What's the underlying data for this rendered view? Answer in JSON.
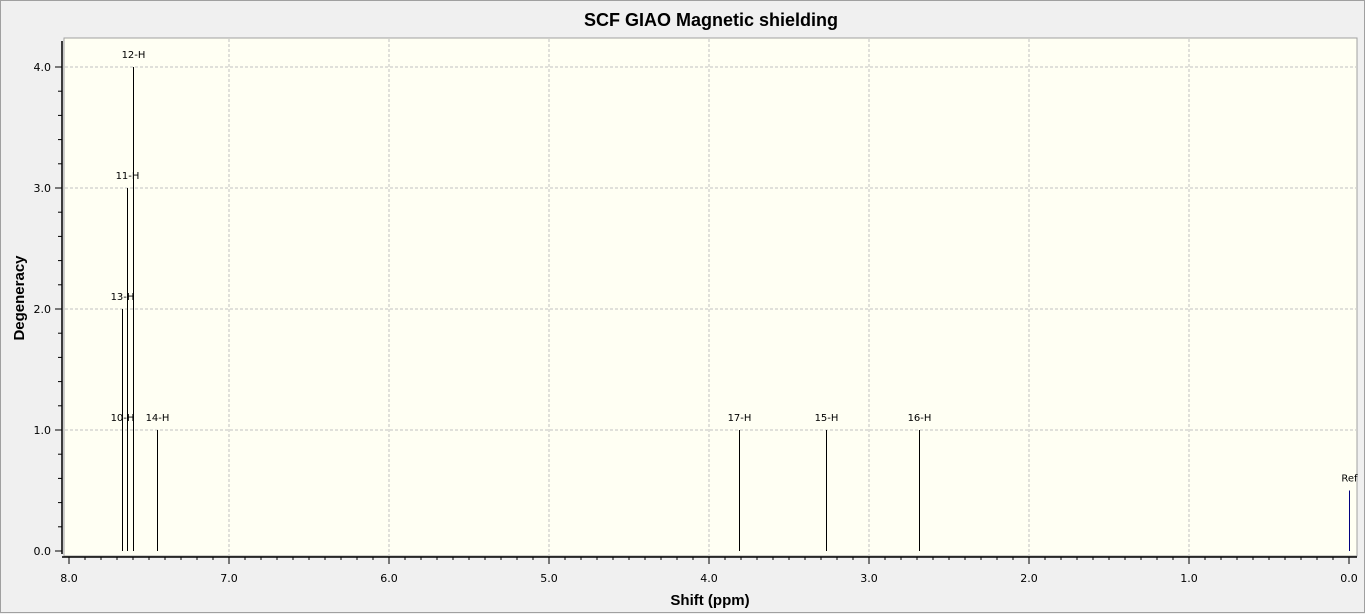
{
  "chart_data": {
    "type": "bar",
    "title": "SCF GIAO Magnetic shielding",
    "xlabel": "Shift (ppm)",
    "ylabel": "Degeneracy",
    "xlim": [
      8.0,
      0.0
    ],
    "ylim": [
      0.0,
      4.2
    ],
    "x_reversed": true,
    "grid": true,
    "xticks": [
      "8.0",
      "7.0",
      "6.0",
      "5.0",
      "4.0",
      "3.0",
      "2.0",
      "1.0",
      "0.0"
    ],
    "yticks": [
      "0.0",
      "1.0",
      "2.0",
      "3.0",
      "4.0"
    ],
    "peaks": [
      {
        "label": "10-H",
        "x": 7.67,
        "y": 1.0
      },
      {
        "label": "13-H",
        "x": 7.67,
        "y": 2.0
      },
      {
        "label": "11-H",
        "x": 7.64,
        "y": 3.0
      },
      {
        "label": "12-H",
        "x": 7.6,
        "y": 4.0
      },
      {
        "label": "14-H",
        "x": 7.45,
        "y": 1.0
      },
      {
        "label": "17-H",
        "x": 3.81,
        "y": 1.0
      },
      {
        "label": "15-H",
        "x": 3.27,
        "y": 1.0
      },
      {
        "label": "16-H",
        "x": 2.69,
        "y": 1.0
      },
      {
        "label": "Ref",
        "x": 0.0,
        "y": 0.5,
        "color": "#000080"
      }
    ],
    "colors": {
      "background": "#fffff3",
      "grid": "#c0c0c0",
      "peak": "#000000",
      "ref": "#000080"
    }
  }
}
